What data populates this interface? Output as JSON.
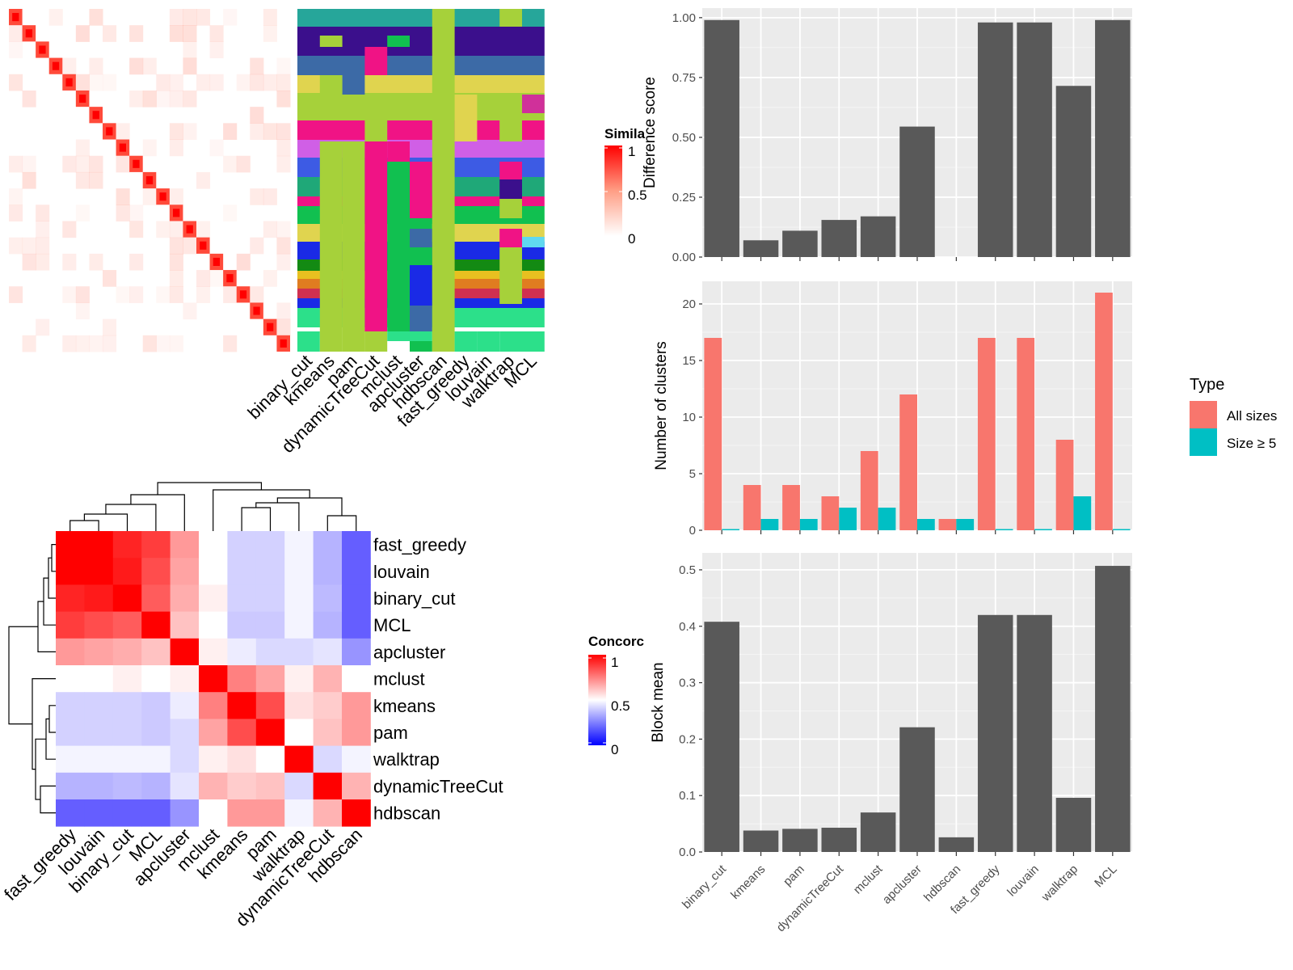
{
  "methods": [
    "binary_cut",
    "kmeans",
    "pam",
    "dynamicTreeCut",
    "mclust",
    "apcluster",
    "hdbscan",
    "fast_greedy",
    "louvain",
    "walktrap",
    "MCL"
  ],
  "similarity_legend": {
    "title": "Simila",
    "ticks": [
      "1",
      "0.5",
      "0"
    ]
  },
  "concordance_legend": {
    "title": "Concorc",
    "ticks": [
      "1",
      "0.5",
      "0"
    ]
  },
  "concordance_order": [
    "fast_greedy",
    "louvain",
    "binary_cut",
    "MCL",
    "apcluster",
    "mclust",
    "kmeans",
    "pam",
    "walktrap",
    "dynamicTreeCut",
    "hdbscan"
  ],
  "type_legend": {
    "title": "Type",
    "items": [
      {
        "label": "All sizes",
        "color": "#F8766D"
      },
      {
        "label": "Size ≥ 5",
        "color": "#00BFC4"
      }
    ]
  },
  "colors": {
    "panel_bg": "#EBEBEB",
    "bar": "#595959",
    "grid": "#FFFFFF",
    "sim_high": "#FF0000",
    "conc_low": "#0000FF"
  },
  "chart_data": [
    {
      "type": "heatmap",
      "title": "",
      "legend_title": "Simila",
      "diagonal_blocks": 21,
      "value_range": [
        0,
        1
      ]
    },
    {
      "type": "heatmap",
      "title": "",
      "x_labels": [
        "binary_cut",
        "kmeans",
        "pam",
        "dynamicTreeCut",
        "mclust",
        "apcluster",
        "hdbscan",
        "fast_greedy",
        "louvain",
        "walktrap",
        "MCL"
      ]
    },
    {
      "type": "heatmap",
      "title": "",
      "legend_title": "Concorc",
      "labels": [
        "fast_greedy",
        "louvain",
        "binary_cut",
        "MCL",
        "apcluster",
        "mclust",
        "kmeans",
        "pam",
        "walktrap",
        "dynamicTreeCut",
        "hdbscan"
      ],
      "value_range": [
        0,
        1
      ],
      "values": [
        [
          1.0,
          1.0,
          0.93,
          0.88,
          0.7,
          0.5,
          0.38,
          0.38,
          0.47,
          0.3,
          0.08
        ],
        [
          1.0,
          1.0,
          0.95,
          0.85,
          0.68,
          0.5,
          0.38,
          0.38,
          0.47,
          0.3,
          0.08
        ],
        [
          0.93,
          0.95,
          1.0,
          0.82,
          0.66,
          0.53,
          0.38,
          0.38,
          0.47,
          0.32,
          0.08
        ],
        [
          0.88,
          0.85,
          0.82,
          1.0,
          0.62,
          0.5,
          0.36,
          0.36,
          0.47,
          0.3,
          0.08
        ],
        [
          0.7,
          0.68,
          0.66,
          0.62,
          1.0,
          0.53,
          0.45,
          0.4,
          0.4,
          0.43,
          0.22
        ],
        [
          0.5,
          0.5,
          0.53,
          0.5,
          0.53,
          1.0,
          0.75,
          0.68,
          0.53,
          0.65,
          0.5
        ],
        [
          0.38,
          0.38,
          0.38,
          0.36,
          0.45,
          0.75,
          1.0,
          0.85,
          0.56,
          0.6,
          0.7
        ],
        [
          0.38,
          0.38,
          0.38,
          0.36,
          0.4,
          0.68,
          0.85,
          1.0,
          0.5,
          0.62,
          0.7
        ],
        [
          0.47,
          0.47,
          0.47,
          0.47,
          0.4,
          0.53,
          0.56,
          0.5,
          1.0,
          0.4,
          0.47
        ],
        [
          0.3,
          0.3,
          0.32,
          0.3,
          0.43,
          0.65,
          0.6,
          0.62,
          0.4,
          1.0,
          0.65
        ],
        [
          0.08,
          0.08,
          0.08,
          0.08,
          0.22,
          0.5,
          0.7,
          0.7,
          0.47,
          0.65,
          1.0
        ]
      ]
    },
    {
      "type": "bar",
      "title": "",
      "ylabel": "Difference score",
      "categories": [
        "binary_cut",
        "kmeans",
        "pam",
        "dynamicTreeCut",
        "mclust",
        "apcluster",
        "hdbscan",
        "fast_greedy",
        "louvain",
        "walktrap",
        "MCL"
      ],
      "values": [
        0.99,
        0.07,
        0.11,
        0.155,
        0.17,
        0.545,
        0.0,
        0.98,
        0.98,
        0.715,
        0.99
      ],
      "ylim": [
        0,
        1.04
      ],
      "yticks": [
        "0.00",
        "0.25",
        "0.50",
        "0.75",
        "1.00"
      ],
      "show_x_labels": false
    },
    {
      "type": "bar",
      "title": "",
      "ylabel": "Number of clusters",
      "categories": [
        "binary_cut",
        "kmeans",
        "pam",
        "dynamicTreeCut",
        "mclust",
        "apcluster",
        "hdbscan",
        "fast_greedy",
        "louvain",
        "walktrap",
        "MCL"
      ],
      "series": [
        {
          "name": "All sizes",
          "values": [
            17,
            4,
            4,
            3,
            7,
            12,
            1,
            17,
            17,
            8,
            21
          ]
        },
        {
          "name": "Size ≥ 5",
          "values": [
            0,
            1,
            1,
            2,
            2,
            1,
            1,
            0,
            0,
            3,
            0
          ]
        }
      ],
      "ylim": [
        0,
        22
      ],
      "yticks": [
        "0",
        "5",
        "10",
        "15",
        "20"
      ],
      "show_x_labels": false
    },
    {
      "type": "bar",
      "title": "",
      "ylabel": "Block mean",
      "categories": [
        "binary_cut",
        "kmeans",
        "pam",
        "dynamicTreeCut",
        "mclust",
        "apcluster",
        "hdbscan",
        "fast_greedy",
        "louvain",
        "walktrap",
        "MCL"
      ],
      "values": [
        0.408,
        0.038,
        0.041,
        0.043,
        0.07,
        0.221,
        0.026,
        0.42,
        0.42,
        0.096,
        0.507
      ],
      "ylim": [
        0,
        0.53
      ],
      "yticks": [
        "0.0",
        "0.1",
        "0.2",
        "0.3",
        "0.4",
        "0.5"
      ],
      "show_x_labels": true
    }
  ]
}
